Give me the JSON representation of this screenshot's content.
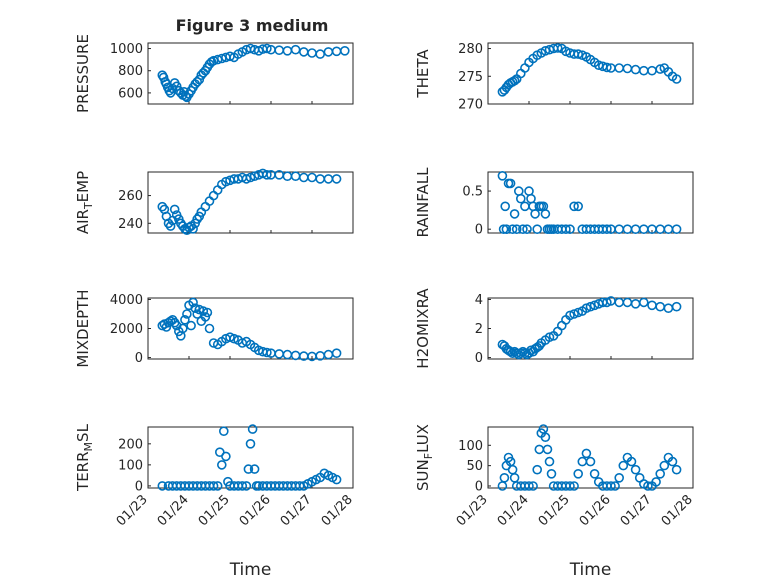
{
  "figure_title": "Figure 3 medium",
  "x_axis_label": "Time",
  "x_ticks": [
    "01/23",
    "01/24",
    "01/25",
    "01/26",
    "01/27",
    "01/28"
  ],
  "colors": {
    "marker": "#0072BD",
    "axis": "#262626"
  },
  "chart_data": [
    {
      "type": "scatter",
      "id": "pressure",
      "title": "Figure 3 medium",
      "ylabel": "PRESSURE",
      "xlim": [
        0,
        5
      ],
      "ylim": [
        500,
        1050
      ],
      "yticks": [
        600,
        800,
        1000
      ],
      "x": [
        0.35,
        0.38,
        0.42,
        0.45,
        0.48,
        0.52,
        0.55,
        0.6,
        0.65,
        0.7,
        0.75,
        0.8,
        0.85,
        0.88,
        0.92,
        0.95,
        1.0,
        1.05,
        1.1,
        1.15,
        1.2,
        1.25,
        1.3,
        1.35,
        1.4,
        1.45,
        1.5,
        1.55,
        1.6,
        1.7,
        1.8,
        1.9,
        2.0,
        2.1,
        2.2,
        2.3,
        2.4,
        2.5,
        2.6,
        2.7,
        2.8,
        2.9,
        3.0,
        3.2,
        3.4,
        3.6,
        3.8,
        4.0,
        4.2,
        4.4,
        4.6,
        4.8
      ],
      "y": [
        760,
        740,
        700,
        680,
        650,
        620,
        600,
        640,
        690,
        660,
        620,
        600,
        580,
        610,
        570,
        560,
        590,
        620,
        650,
        680,
        700,
        720,
        760,
        780,
        800,
        830,
        860,
        880,
        890,
        900,
        910,
        920,
        930,
        920,
        950,
        970,
        990,
        1000,
        990,
        980,
        995,
        1000,
        990,
        985,
        980,
        990,
        970,
        960,
        950,
        970,
        975,
        980
      ]
    },
    {
      "type": "scatter",
      "id": "theta",
      "ylabel": "THETA",
      "xlim": [
        0,
        5
      ],
      "ylim": [
        270,
        281
      ],
      "yticks": [
        270,
        275,
        280
      ],
      "x": [
        0.35,
        0.4,
        0.45,
        0.5,
        0.55,
        0.6,
        0.65,
        0.7,
        0.8,
        0.9,
        1.0,
        1.1,
        1.2,
        1.3,
        1.4,
        1.5,
        1.6,
        1.7,
        1.8,
        1.9,
        2.0,
        2.1,
        2.2,
        2.3,
        2.4,
        2.5,
        2.6,
        2.7,
        2.8,
        2.9,
        3.0,
        3.2,
        3.4,
        3.6,
        3.8,
        4.0,
        4.2,
        4.3,
        4.4,
        4.5,
        4.6
      ],
      "y": [
        272.2,
        272.5,
        273,
        273.5,
        273.8,
        274,
        274.2,
        274.5,
        275.5,
        276.5,
        277.5,
        278.2,
        278.8,
        279.2,
        279.6,
        279.8,
        280,
        280.1,
        280,
        279.5,
        279.2,
        279,
        279,
        278.8,
        278.5,
        278,
        277.5,
        277,
        276.8,
        276.6,
        276.5,
        276.5,
        276.4,
        276.2,
        276,
        276,
        276.3,
        276.5,
        275.8,
        275,
        274.5
      ]
    },
    {
      "type": "scatter",
      "id": "air_temp",
      "ylabel": "AIR_TEMP",
      "xlim": [
        0,
        5
      ],
      "ylim": [
        233,
        277
      ],
      "yticks": [
        240,
        260
      ],
      "x": [
        0.35,
        0.4,
        0.45,
        0.5,
        0.55,
        0.6,
        0.65,
        0.7,
        0.75,
        0.8,
        0.85,
        0.9,
        0.95,
        1.0,
        1.05,
        1.1,
        1.15,
        1.2,
        1.25,
        1.3,
        1.4,
        1.5,
        1.6,
        1.7,
        1.8,
        1.9,
        2.0,
        2.1,
        2.2,
        2.3,
        2.4,
        2.5,
        2.6,
        2.7,
        2.8,
        2.9,
        3.0,
        3.2,
        3.4,
        3.6,
        3.8,
        4.0,
        4.2,
        4.4,
        4.6
      ],
      "y": [
        252,
        250,
        245,
        240,
        238,
        242,
        250,
        246,
        243,
        240,
        238,
        236,
        235,
        237,
        238,
        236,
        240,
        243,
        245,
        248,
        252,
        256,
        260,
        264,
        268,
        270,
        271,
        272,
        272,
        273,
        272,
        273,
        274,
        275,
        276,
        275,
        275,
        275,
        274,
        274,
        273,
        273,
        272,
        272,
        272
      ]
    },
    {
      "type": "scatter",
      "id": "rainfall",
      "ylabel": "RAINFALL",
      "xlim": [
        0,
        5
      ],
      "ylim": [
        -0.05,
        0.75
      ],
      "yticks": [
        0,
        0.5
      ],
      "x": [
        0.35,
        0.38,
        0.42,
        0.45,
        0.5,
        0.55,
        0.6,
        0.65,
        0.7,
        0.75,
        0.8,
        0.85,
        0.9,
        0.95,
        1.0,
        1.05,
        1.1,
        1.15,
        1.2,
        1.25,
        1.3,
        1.35,
        1.4,
        1.45,
        1.5,
        1.55,
        1.6,
        1.7,
        1.8,
        1.9,
        2.0,
        2.1,
        2.2,
        2.3,
        2.4,
        2.5,
        2.6,
        2.7,
        2.8,
        2.9,
        3.0,
        3.2,
        3.4,
        3.6,
        3.8,
        4.0,
        4.2,
        4.4,
        4.6
      ],
      "y": [
        0.7,
        0,
        0.3,
        0,
        0.6,
        0.6,
        0,
        0.2,
        0,
        0.5,
        0.4,
        0,
        0.3,
        0,
        0.5,
        0.4,
        0.3,
        0.2,
        0,
        0.3,
        0.3,
        0.3,
        0.2,
        0,
        0,
        0,
        0,
        0,
        0,
        0,
        0,
        0.3,
        0.3,
        0,
        0,
        0,
        0,
        0,
        0,
        0,
        0,
        0,
        0,
        0,
        0,
        0,
        0,
        0,
        0
      ]
    },
    {
      "type": "scatter",
      "id": "mixdepth",
      "ylabel": "MIXDEPTH",
      "xlim": [
        0,
        5
      ],
      "ylim": [
        -100,
        4100
      ],
      "yticks": [
        0,
        2000,
        4000
      ],
      "x": [
        0.35,
        0.4,
        0.45,
        0.5,
        0.55,
        0.6,
        0.65,
        0.7,
        0.75,
        0.8,
        0.85,
        0.9,
        0.95,
        1.0,
        1.05,
        1.1,
        1.15,
        1.2,
        1.25,
        1.3,
        1.35,
        1.4,
        1.45,
        1.5,
        1.6,
        1.7,
        1.8,
        1.9,
        2.0,
        2.1,
        2.2,
        2.3,
        2.4,
        2.5,
        2.6,
        2.7,
        2.8,
        2.9,
        3.0,
        3.2,
        3.4,
        3.6,
        3.8,
        4.0,
        4.2,
        4.4,
        4.6
      ],
      "y": [
        2200,
        2300,
        2100,
        2400,
        2500,
        2600,
        2400,
        2200,
        1800,
        1500,
        2000,
        2600,
        3000,
        3600,
        2200,
        3800,
        3400,
        3000,
        3300,
        2500,
        3200,
        2800,
        3100,
        2000,
        1000,
        900,
        1100,
        1300,
        1400,
        1300,
        1200,
        1000,
        1100,
        900,
        700,
        500,
        400,
        350,
        300,
        250,
        200,
        150,
        100,
        80,
        120,
        200,
        300
      ]
    },
    {
      "type": "scatter",
      "id": "h2omixra",
      "ylabel": "H2OMIXRA",
      "xlim": [
        0,
        5
      ],
      "ylim": [
        -0.1,
        4.1
      ],
      "yticks": [
        0,
        2,
        4
      ],
      "x": [
        0.35,
        0.4,
        0.45,
        0.5,
        0.55,
        0.6,
        0.65,
        0.7,
        0.75,
        0.8,
        0.85,
        0.9,
        0.95,
        1.0,
        1.05,
        1.1,
        1.15,
        1.2,
        1.25,
        1.3,
        1.4,
        1.5,
        1.6,
        1.7,
        1.8,
        1.9,
        2.0,
        2.1,
        2.2,
        2.3,
        2.4,
        2.5,
        2.6,
        2.7,
        2.8,
        2.9,
        3.0,
        3.2,
        3.4,
        3.6,
        3.8,
        4.0,
        4.2,
        4.4,
        4.6
      ],
      "y": [
        0.9,
        0.8,
        0.6,
        0.5,
        0.4,
        0.3,
        0.4,
        0.3,
        0.2,
        0.3,
        0.4,
        0.3,
        0.2,
        0.3,
        0.5,
        0.4,
        0.6,
        0.7,
        0.8,
        1.0,
        1.2,
        1.4,
        1.5,
        1.8,
        2.2,
        2.6,
        2.9,
        3.0,
        3.1,
        3.2,
        3.4,
        3.5,
        3.6,
        3.7,
        3.8,
        3.8,
        3.9,
        3.8,
        3.8,
        3.7,
        3.8,
        3.6,
        3.5,
        3.4,
        3.5
      ]
    },
    {
      "type": "scatter",
      "id": "terr_msl",
      "ylabel": "TERR_MSL",
      "xlim": [
        0,
        5
      ],
      "ylim": [
        -10,
        280
      ],
      "yticks": [
        0,
        100,
        200
      ],
      "x": [
        0.35,
        0.5,
        0.6,
        0.7,
        0.8,
        0.9,
        1.0,
        1.1,
        1.2,
        1.3,
        1.4,
        1.5,
        1.6,
        1.7,
        1.75,
        1.8,
        1.85,
        1.9,
        1.95,
        2.0,
        2.1,
        2.2,
        2.3,
        2.4,
        2.45,
        2.5,
        2.55,
        2.6,
        2.65,
        2.7,
        2.8,
        2.9,
        3.0,
        3.1,
        3.2,
        3.3,
        3.4,
        3.5,
        3.6,
        3.7,
        3.8,
        3.9,
        4.0,
        4.1,
        4.2,
        4.3,
        4.4,
        4.5,
        4.6
      ],
      "y": [
        0,
        0,
        0,
        0,
        0,
        0,
        0,
        0,
        0,
        0,
        0,
        0,
        0,
        0,
        160,
        100,
        260,
        140,
        20,
        0,
        0,
        0,
        0,
        0,
        80,
        200,
        270,
        80,
        0,
        0,
        0,
        0,
        0,
        0,
        0,
        0,
        0,
        0,
        0,
        0,
        0,
        10,
        20,
        30,
        40,
        60,
        50,
        40,
        30
      ]
    },
    {
      "type": "scatter",
      "id": "sun_flux",
      "ylabel": "SUN_FLUX",
      "xlim": [
        0,
        5
      ],
      "ylim": [
        -5,
        145
      ],
      "yticks": [
        0,
        50,
        100
      ],
      "x": [
        0.35,
        0.4,
        0.45,
        0.5,
        0.55,
        0.6,
        0.65,
        0.7,
        0.8,
        0.9,
        1.0,
        1.1,
        1.2,
        1.25,
        1.3,
        1.35,
        1.4,
        1.45,
        1.5,
        1.55,
        1.6,
        1.7,
        1.8,
        1.9,
        2.0,
        2.1,
        2.2,
        2.3,
        2.4,
        2.5,
        2.6,
        2.7,
        2.8,
        2.9,
        3.0,
        3.1,
        3.2,
        3.3,
        3.4,
        3.5,
        3.6,
        3.7,
        3.8,
        3.9,
        4.0,
        4.1,
        4.2,
        4.3,
        4.4,
        4.5,
        4.6
      ],
      "y": [
        0,
        20,
        50,
        70,
        60,
        40,
        20,
        0,
        0,
        0,
        0,
        0,
        40,
        90,
        130,
        140,
        120,
        90,
        60,
        30,
        0,
        0,
        0,
        0,
        0,
        0,
        30,
        60,
        80,
        60,
        30,
        10,
        0,
        0,
        0,
        0,
        20,
        50,
        70,
        60,
        40,
        20,
        5,
        0,
        0,
        10,
        30,
        50,
        70,
        60,
        40
      ]
    }
  ]
}
